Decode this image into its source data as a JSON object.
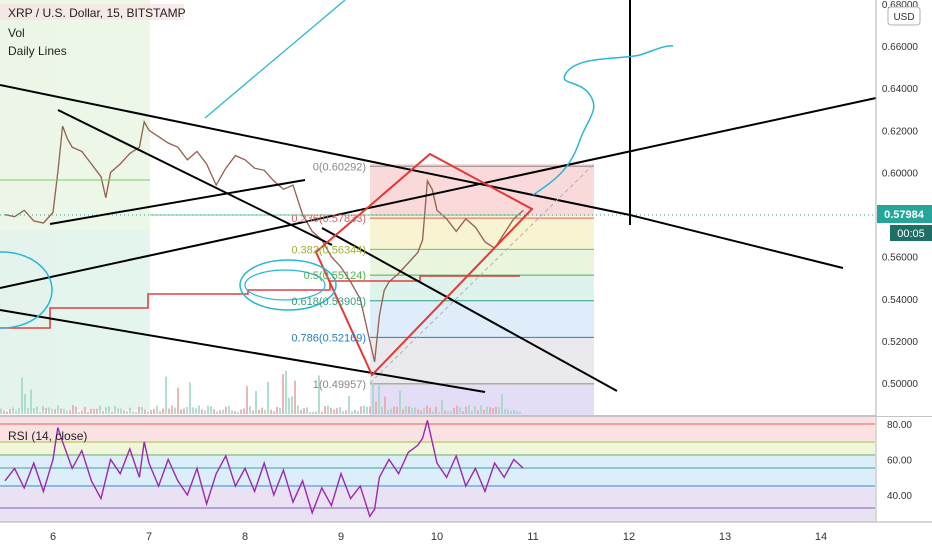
{
  "header": {
    "title": "XRP / U.S. Dollar, 15, BITSTAMP",
    "indicators": [
      "Vol",
      "Daily Lines"
    ]
  },
  "currency_button": "USD",
  "price_badge": "0.57984",
  "countdown_badge": "00:05",
  "rsi_label": "RSI (14, close)",
  "colors": {
    "price_badge": "#26a69a",
    "countdown_badge": "#1e6f67",
    "rsi_line": "#9c27b0",
    "fib_red": "#e53935",
    "cyan_drawing": "#29b6d4",
    "drawing_black": "#000000",
    "daily_line": "#e04040"
  },
  "chart_data": {
    "type": "line",
    "x": [
      "6",
      "7",
      "8",
      "9",
      "10",
      "11",
      "12",
      "13",
      "14"
    ],
    "price_axis": {
      "ticks": [
        "0.68000",
        "0.66000",
        "0.64000",
        "0.62000",
        "0.60000",
        "0.58000",
        "0.56000",
        "0.54000",
        "0.52000",
        "0.50000"
      ],
      "ylim": [
        0.495,
        0.683
      ]
    },
    "rsi_axis": {
      "ticks": [
        "80.00",
        "60.00",
        "40.00"
      ],
      "ylim": [
        25,
        85
      ]
    },
    "fib_levels": [
      {
        "label": "0(0.60292)",
        "ratio": "0",
        "value": 0.60292
      },
      {
        "label": "0.236(0.57833)",
        "ratio": "0.236",
        "value": 0.57833
      },
      {
        "label": "0.382(0.56344)",
        "ratio": "0.382",
        "value": 0.56344
      },
      {
        "label": "0.5(0.55124)",
        "ratio": "0.5",
        "value": 0.55124
      },
      {
        "label": "0.618(0.53905)",
        "ratio": "0.618",
        "value": 0.53905
      },
      {
        "label": "0.786(0.52169)",
        "ratio": "0.786",
        "value": 0.52169
      },
      {
        "label": "1(0.49957)",
        "ratio": "1",
        "value": 0.49957
      }
    ],
    "last_price": 0.57984,
    "price_series": [
      [
        5.5,
        0.58
      ],
      [
        5.6,
        0.579
      ],
      [
        5.7,
        0.582
      ],
      [
        5.8,
        0.577
      ],
      [
        5.9,
        0.576
      ],
      [
        6.0,
        0.581
      ],
      [
        6.05,
        0.6
      ],
      [
        6.1,
        0.622
      ],
      [
        6.15,
        0.616
      ],
      [
        6.2,
        0.612
      ],
      [
        6.3,
        0.61
      ],
      [
        6.4,
        0.604
      ],
      [
        6.5,
        0.598
      ],
      [
        6.55,
        0.588
      ],
      [
        6.6,
        0.6
      ],
      [
        6.7,
        0.604
      ],
      [
        6.8,
        0.609
      ],
      [
        6.9,
        0.612
      ],
      [
        6.95,
        0.624
      ],
      [
        7.0,
        0.62
      ],
      [
        7.1,
        0.617
      ],
      [
        7.2,
        0.614
      ],
      [
        7.3,
        0.612
      ],
      [
        7.4,
        0.606
      ],
      [
        7.5,
        0.61
      ],
      [
        7.6,
        0.604
      ],
      [
        7.7,
        0.594
      ],
      [
        7.8,
        0.602
      ],
      [
        7.9,
        0.608
      ],
      [
        8.0,
        0.606
      ],
      [
        8.1,
        0.602
      ],
      [
        8.2,
        0.601
      ],
      [
        8.3,
        0.596
      ],
      [
        8.4,
        0.592
      ],
      [
        8.5,
        0.594
      ],
      [
        8.6,
        0.58
      ],
      [
        8.7,
        0.572
      ],
      [
        8.8,
        0.568
      ],
      [
        8.9,
        0.56
      ],
      [
        9.0,
        0.555
      ],
      [
        9.1,
        0.548
      ],
      [
        9.2,
        0.54
      ],
      [
        9.3,
        0.52
      ],
      [
        9.35,
        0.51
      ],
      [
        9.4,
        0.532
      ],
      [
        9.45,
        0.544
      ],
      [
        9.5,
        0.548
      ],
      [
        9.6,
        0.552
      ],
      [
        9.7,
        0.557
      ],
      [
        9.8,
        0.562
      ],
      [
        9.85,
        0.568
      ],
      [
        9.9,
        0.596
      ],
      [
        9.95,
        0.592
      ],
      [
        10.0,
        0.582
      ],
      [
        10.1,
        0.578
      ],
      [
        10.2,
        0.572
      ],
      [
        10.3,
        0.578
      ],
      [
        10.4,
        0.574
      ],
      [
        10.5,
        0.567
      ],
      [
        10.6,
        0.564
      ],
      [
        10.7,
        0.571
      ],
      [
        10.8,
        0.578
      ],
      [
        10.9,
        0.582
      ]
    ],
    "rsi_series": [
      [
        5.5,
        48
      ],
      [
        5.6,
        55
      ],
      [
        5.7,
        44
      ],
      [
        5.8,
        58
      ],
      [
        5.9,
        42
      ],
      [
        6.0,
        60
      ],
      [
        6.05,
        78
      ],
      [
        6.1,
        70
      ],
      [
        6.2,
        55
      ],
      [
        6.3,
        65
      ],
      [
        6.4,
        48
      ],
      [
        6.5,
        38
      ],
      [
        6.6,
        60
      ],
      [
        6.7,
        52
      ],
      [
        6.8,
        66
      ],
      [
        6.9,
        50
      ],
      [
        6.95,
        70
      ],
      [
        7.0,
        58
      ],
      [
        7.1,
        45
      ],
      [
        7.2,
        60
      ],
      [
        7.3,
        48
      ],
      [
        7.4,
        40
      ],
      [
        7.5,
        55
      ],
      [
        7.6,
        35
      ],
      [
        7.7,
        52
      ],
      [
        7.8,
        62
      ],
      [
        7.9,
        45
      ],
      [
        8.0,
        55
      ],
      [
        8.1,
        42
      ],
      [
        8.2,
        58
      ],
      [
        8.3,
        40
      ],
      [
        8.4,
        54
      ],
      [
        8.5,
        36
      ],
      [
        8.6,
        48
      ],
      [
        8.7,
        30
      ],
      [
        8.8,
        44
      ],
      [
        8.9,
        34
      ],
      [
        9.0,
        52
      ],
      [
        9.1,
        38
      ],
      [
        9.2,
        45
      ],
      [
        9.3,
        28
      ],
      [
        9.35,
        32
      ],
      [
        9.4,
        50
      ],
      [
        9.5,
        60
      ],
      [
        9.6,
        52
      ],
      [
        9.7,
        64
      ],
      [
        9.8,
        68
      ],
      [
        9.85,
        72
      ],
      [
        9.9,
        82
      ],
      [
        9.95,
        70
      ],
      [
        10.0,
        58
      ],
      [
        10.1,
        50
      ],
      [
        10.2,
        62
      ],
      [
        10.3,
        45
      ],
      [
        10.4,
        55
      ],
      [
        10.5,
        42
      ],
      [
        10.6,
        58
      ],
      [
        10.7,
        50
      ],
      [
        10.8,
        60
      ],
      [
        10.9,
        55
      ]
    ]
  }
}
